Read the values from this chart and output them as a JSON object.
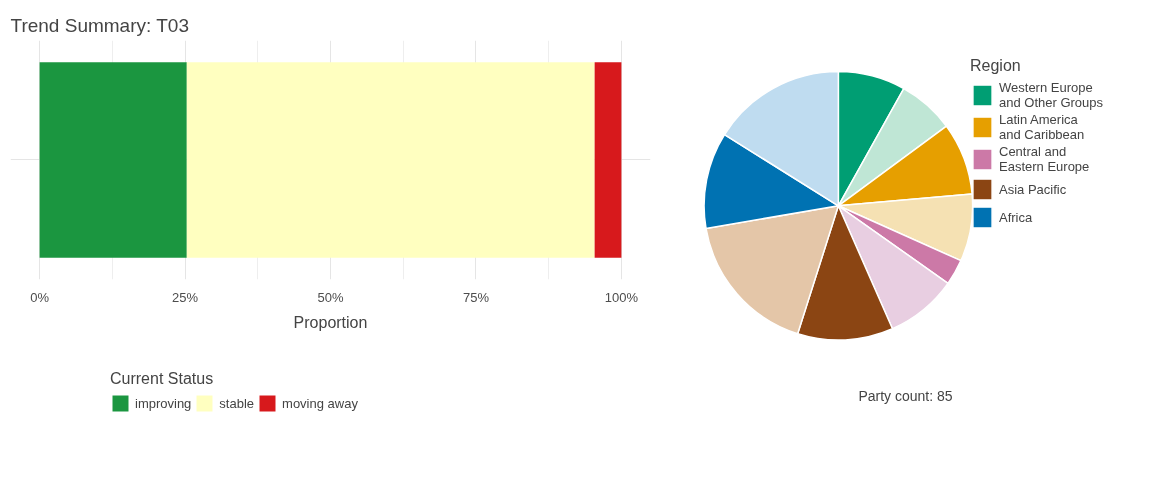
{
  "chart_data": [
    {
      "type": "bar",
      "title": "Trend Summary:  T03",
      "xlabel": "Proportion",
      "orientation": "horizontal",
      "stacked": true,
      "categories": [
        null
      ],
      "series": [
        {
          "name": "improving",
          "color": "#1b9640",
          "values": [
            25.3
          ]
        },
        {
          "name": "stable",
          "color": "#ffffc0",
          "values": [
            70.1
          ]
        },
        {
          "name": "moving away",
          "color": "#d7191c",
          "values": [
            4.6
          ]
        }
      ],
      "xlim": [
        -5,
        105
      ],
      "xticks": [
        {
          "value": 0,
          "label": "0%"
        },
        {
          "value": 25,
          "label": "25%"
        },
        {
          "value": 50,
          "label": "50%"
        },
        {
          "value": 75,
          "label": "75%"
        },
        {
          "value": 100,
          "label": "100%"
        }
      ],
      "grid": true,
      "legend": "bottom",
      "legend_title": "Current Status"
    },
    {
      "type": "pie",
      "legend_title": "Region",
      "legend": "right",
      "annotations": [
        "Party count: 85"
      ],
      "categories": [
        "Western Europe\nand Other Groups",
        null,
        "Latin America\nand Caribbean",
        null,
        "Central and\nEastern Europe",
        null,
        "Asia Pacific",
        null,
        "Africa",
        null
      ],
      "values": [
        8.1,
        6.8,
        8.7,
        8.1,
        3.1,
        8.6,
        11.5,
        17.4,
        11.6,
        16.1
      ],
      "colors": [
        "#009e73",
        "#bfe6d5",
        "#e69f00",
        "#f5e1b3",
        "#cc79a7",
        "#e8cee1",
        "#8b4513",
        "#e4c6a8",
        "#0072b2",
        "#bfdcf0"
      ]
    }
  ]
}
